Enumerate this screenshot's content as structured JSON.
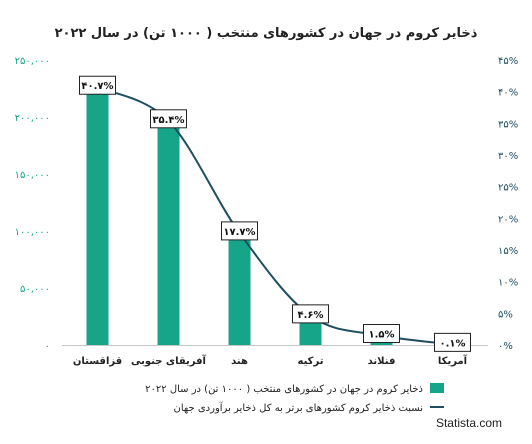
{
  "chart_data": {
    "type": "bar",
    "title": "ذخایر کروم در جهان در کشورهای منتخب ( ۱۰۰۰ تن) در سال ۲۰۲۲",
    "categories": [
      "قزاقستان",
      "آفریقای جنوبی",
      "هند",
      "ترکیه",
      "فنلاند",
      "آمریکا"
    ],
    "left_axis": {
      "ylim": [
        0,
        250000
      ],
      "ticks": [
        0,
        50000,
        100000,
        150000,
        200000,
        250000
      ],
      "tick_labels": [
        "۰",
        "۵۰,۰۰۰",
        "۱۰۰,۰۰۰",
        "۱۵۰,۰۰۰",
        "۲۰۰,۰۰۰",
        "۲۵۰,۰۰۰"
      ]
    },
    "right_axis": {
      "ylim": [
        0,
        45
      ],
      "ticks": [
        0,
        5,
        10,
        15,
        20,
        25,
        30,
        35,
        40,
        45
      ],
      "tick_labels": [
        "۰%",
        "۵%",
        "۱۰%",
        "۱۵%",
        "۲۰%",
        "۲۵%",
        "۳۰%",
        "۳۵%",
        "۴۰%",
        "۴۵%"
      ]
    },
    "series": [
      {
        "name": "ذخایر کروم در جهان در کشورهای منتخب ( ۱۰۰۰ تن) در سال ۲۰۲۲",
        "type": "bar",
        "axis": "left",
        "color": "#17a589",
        "values": [
          230000,
          200000,
          100000,
          26000,
          8300,
          620
        ]
      },
      {
        "name": "نسبت ذخایر کروم کشورهای برتر به کل ذخایر برآوردی جهان",
        "type": "line",
        "axis": "right",
        "color": "#1f4e5f",
        "values": [
          40.7,
          35.4,
          17.7,
          4.6,
          1.5,
          0.1
        ],
        "labels": [
          "۴۰.۷%",
          "۳۵.۴%",
          "۱۷.۷%",
          "۴.۶%",
          "۱.۵%",
          "۰.۱%"
        ]
      }
    ],
    "grid": false,
    "legend_position": "bottom"
  },
  "branding": {
    "text": "Statista.com"
  }
}
